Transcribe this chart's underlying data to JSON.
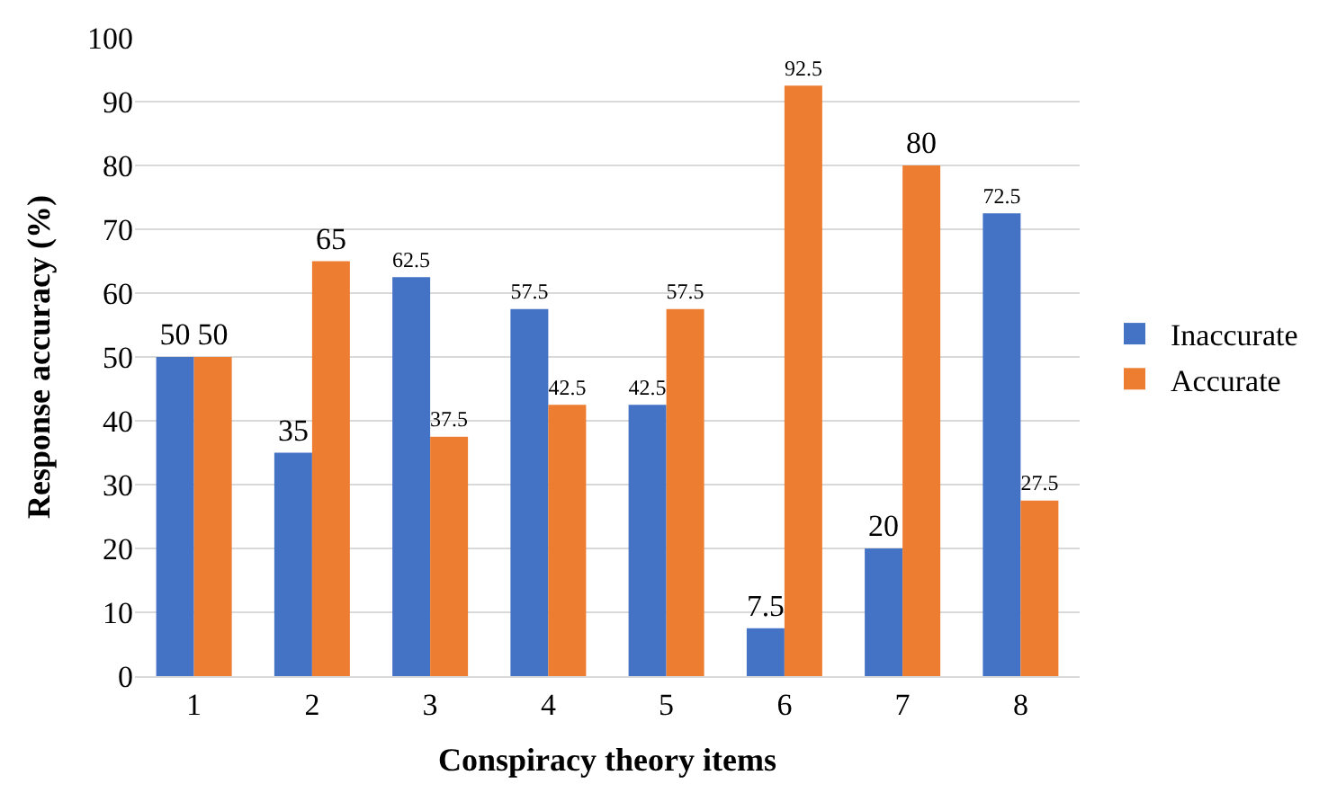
{
  "chart_data": {
    "type": "bar",
    "xlabel": "Conspiracy theory items",
    "ylabel": "Response accuracy (%)",
    "categories": [
      "1",
      "2",
      "3",
      "4",
      "5",
      "6",
      "7",
      "8"
    ],
    "series": [
      {
        "name": "Inaccurate",
        "color": "#4472c4",
        "values": [
          50,
          35,
          62.5,
          57.5,
          42.5,
          7.5,
          20,
          72.5
        ]
      },
      {
        "name": "Accurate",
        "color": "#ed7d31",
        "values": [
          50,
          65,
          37.5,
          42.5,
          57.5,
          92.5,
          80,
          27.5
        ]
      }
    ],
    "ylim": [
      0,
      100
    ],
    "yticks": [
      0,
      10,
      20,
      30,
      40,
      50,
      60,
      70,
      80,
      90,
      100
    ],
    "grid": "y",
    "legend": "right",
    "data_labels": true
  }
}
